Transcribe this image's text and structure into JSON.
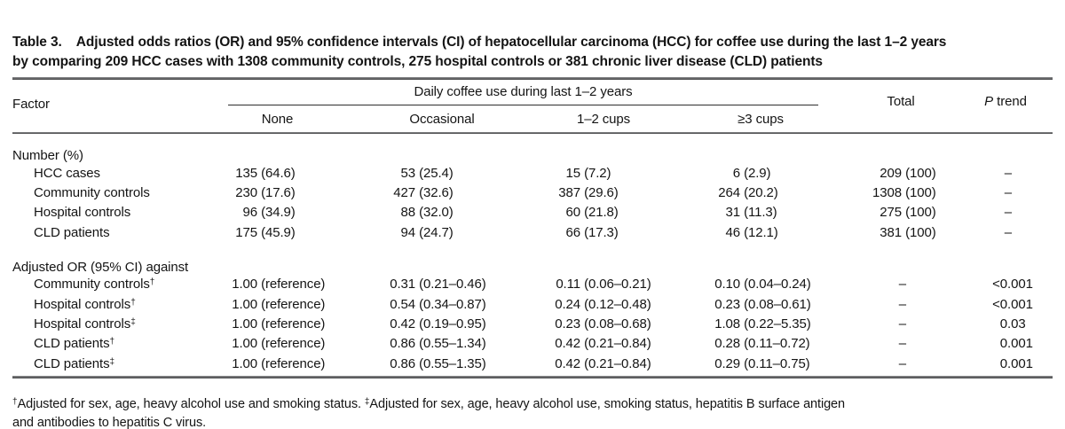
{
  "title": {
    "label": "Table 3.",
    "lines": [
      "Adjusted odds ratios (OR) and 95% confidence intervals (CI) of hepatocellular carcinoma (HCC) for coffee use during the last 1–2 years",
      "by comparing 209 HCC cases with 1308 community controls, 275 hospital controls or 381 chronic liver disease (CLD) patients"
    ]
  },
  "table": {
    "factor_header": "Factor",
    "group_header": "Daily coffee use during last 1–2 years",
    "sub_headers": [
      "None",
      "Occasional",
      "1–2 cups",
      "≥3 cups"
    ],
    "total_header": "Total",
    "ptrend_p": "P",
    "ptrend_trend": " trend",
    "sections": [
      {
        "label": "Number (%)",
        "rows": [
          {
            "factor": "HCC cases",
            "sup": "",
            "values": [
              "135 (64.6)",
              "53 (25.4)",
              "15 (7.2)",
              "6 (2.9)"
            ],
            "total": "209 (100)",
            "ptrend": "–"
          },
          {
            "factor": "Community controls",
            "sup": "",
            "values": [
              "230 (17.6)",
              "427 (32.6)",
              "387 (29.6)",
              "264 (20.2)"
            ],
            "total": "1308 (100)",
            "ptrend": "–"
          },
          {
            "factor": "Hospital controls",
            "sup": "",
            "values": [
              "96 (34.9)",
              "88 (32.0)",
              "60 (21.8)",
              "31 (11.3)"
            ],
            "total": "275 (100)",
            "ptrend": "–"
          },
          {
            "factor": "CLD patients",
            "sup": "",
            "values": [
              "175 (45.9)",
              "94 (24.7)",
              "66 (17.3)",
              "46 (12.1)"
            ],
            "total": "381 (100)",
            "ptrend": "–"
          }
        ]
      },
      {
        "label": "Adjusted OR (95% CI) against",
        "rows": [
          {
            "factor": "Community controls",
            "sup": "†",
            "values": [
              "1.00 (reference)",
              "0.31 (0.21–0.46)",
              "0.11 (0.06–0.21)",
              "0.10 (0.04–0.24)"
            ],
            "total": "–",
            "ptrend": "<0.001"
          },
          {
            "factor": "Hospital controls",
            "sup": "†",
            "values": [
              "1.00 (reference)",
              "0.54 (0.34–0.87)",
              "0.24 (0.12–0.48)",
              "0.23 (0.08–0.61)"
            ],
            "total": "–",
            "ptrend": "<0.001"
          },
          {
            "factor": "Hospital controls",
            "sup": "‡",
            "values": [
              "1.00 (reference)",
              "0.42 (0.19–0.95)",
              "0.23 (0.08–0.68)",
              "1.08 (0.22–5.35)"
            ],
            "total": "–",
            "ptrend": "0.03"
          },
          {
            "factor": "CLD patients",
            "sup": "†",
            "values": [
              "1.00 (reference)",
              "0.86 (0.55–1.34)",
              "0.42 (0.21–0.84)",
              "0.28 (0.11–0.72)"
            ],
            "total": "–",
            "ptrend": "0.001"
          },
          {
            "factor": "CLD patients",
            "sup": "‡",
            "values": [
              "1.00 (reference)",
              "0.86 (0.55–1.35)",
              "0.42 (0.21–0.84)",
              "0.29 (0.11–0.75)"
            ],
            "total": "–",
            "ptrend": "0.001"
          }
        ]
      }
    ]
  },
  "footnote": {
    "segments": [
      {
        "sup": "†",
        "text": "Adjusted for sex, age, heavy alcohol use and smoking status. "
      },
      {
        "sup": "‡",
        "text": "Adjusted for sex, age, heavy alcohol use, smoking status, hepatitis B surface antigen"
      },
      {
        "br": true
      },
      {
        "text": "and antibodies to hepatitis C virus."
      }
    ]
  }
}
